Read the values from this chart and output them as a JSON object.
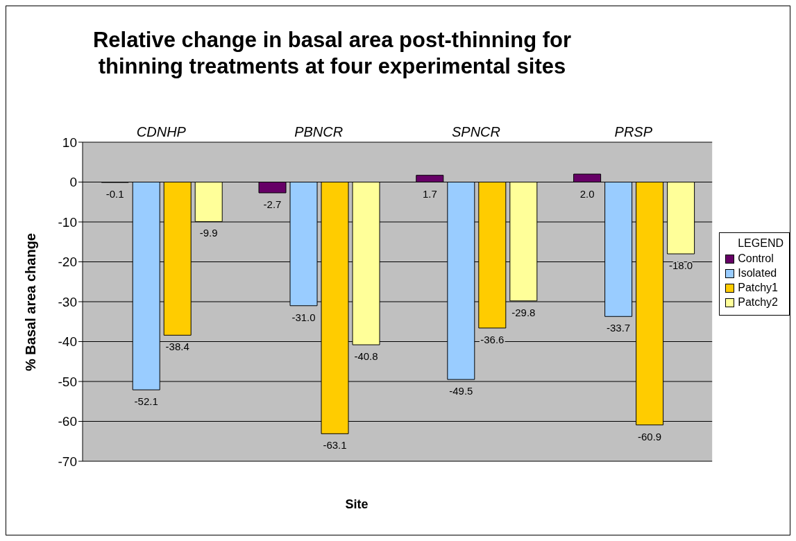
{
  "chart_data": {
    "type": "bar",
    "title": "Relative change in basal area post-thinning for thinning treatments at four experimental sites",
    "xlabel": "Site",
    "ylabel": "% Basal area change",
    "legend_title": "LEGEND",
    "categories": [
      "CDNHP",
      "PBNCR",
      "SPNCR",
      "PRSP"
    ],
    "series": [
      {
        "name": "Control",
        "color": "#660066",
        "values": [
          -0.1,
          -2.7,
          1.7,
          2.0
        ],
        "value_labels": [
          "-0.1",
          "-2.7",
          "1.7",
          "2.0"
        ]
      },
      {
        "name": "Isolated",
        "color": "#99ccff",
        "values": [
          -52.1,
          -31.0,
          -49.5,
          -33.7
        ],
        "value_labels": [
          "-52.1",
          "-31.0",
          "-49.5",
          "-33.7"
        ]
      },
      {
        "name": "Patchy1",
        "color": "#ffcc00",
        "values": [
          -38.4,
          -63.1,
          -36.6,
          -60.9
        ],
        "value_labels": [
          "-38.4",
          "-63.1",
          "-36.6",
          "-60.9"
        ]
      },
      {
        "name": "Patchy2",
        "color": "#ffff99",
        "values": [
          -9.9,
          -40.8,
          -29.8,
          -18.0
        ],
        "value_labels": [
          "-9.9",
          "-40.8",
          "-29.8",
          "-18.0"
        ]
      }
    ],
    "ylim": [
      -70,
      10
    ],
    "yticks": [
      -70,
      -60,
      -50,
      -40,
      -30,
      -20,
      -10,
      0,
      10
    ],
    "grid": "y",
    "legend": "right"
  }
}
